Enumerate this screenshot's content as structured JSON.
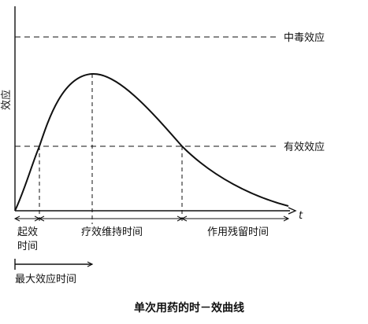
{
  "axes": {
    "y_label": "效应",
    "x_label": "t"
  },
  "levels": {
    "toxic": "中毒效应",
    "effective": "有效效应"
  },
  "phases": {
    "onset_line1": "起效",
    "onset_line2": "时间",
    "maintenance": "疗效维持时间",
    "residual": "作用残留时间",
    "peak_time": "最大效应时间"
  },
  "caption": "单次用药的时－效曲线"
}
